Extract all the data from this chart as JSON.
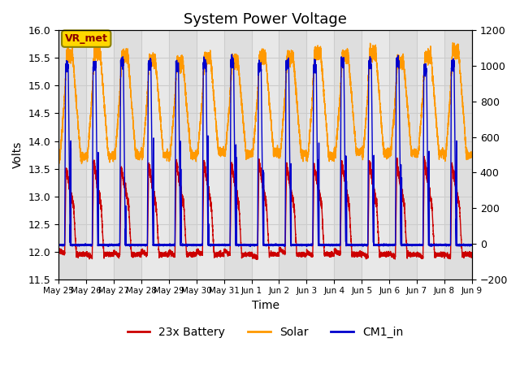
{
  "title": "System Power Voltage",
  "xlabel": "Time",
  "ylabel_left": "Volts",
  "ylim_left": [
    11.5,
    16.0
  ],
  "ylim_right": [
    -200,
    1200
  ],
  "x_tick_labels": [
    "May 25",
    "May 26",
    "May 27",
    "May 28",
    "May 29",
    "May 30",
    "May 31",
    "Jun 1",
    "Jun 2",
    "Jun 3",
    "Jun 4",
    "Jun 5",
    "Jun 6",
    "Jun 7",
    "Jun 8",
    "Jun 9"
  ],
  "y_ticks_left": [
    11.5,
    12.0,
    12.5,
    13.0,
    13.5,
    14.0,
    14.5,
    15.0,
    15.5,
    16.0
  ],
  "y_ticks_right": [
    -200,
    0,
    200,
    400,
    600,
    800,
    1000,
    1200
  ],
  "grid_color": "#cccccc",
  "background_color": "#e8e8e8",
  "band_color": "#d8d8d8",
  "battery_color": "#cc0000",
  "solar_color": "#ff9900",
  "cm1_color": "#0000cc",
  "legend_label_battery": "23x Battery",
  "legend_label_solar": "Solar",
  "legend_label_cm1": "CM1_in",
  "annotation_text": "VR_met",
  "title_fontsize": 13,
  "days": 15
}
